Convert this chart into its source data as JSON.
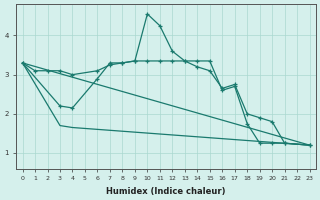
{
  "xlabel": "Humidex (Indice chaleur)",
  "ylabel": "",
  "bg_color": "#d5f0ec",
  "line_color": "#1a7a6e",
  "grid_color": "#aad8d0",
  "xlim": [
    -0.5,
    23.5
  ],
  "ylim": [
    0.6,
    4.8
  ],
  "xticks": [
    0,
    1,
    2,
    3,
    4,
    5,
    6,
    7,
    8,
    9,
    10,
    11,
    12,
    13,
    14,
    15,
    16,
    17,
    18,
    19,
    20,
    21,
    22,
    23
  ],
  "yticks": [
    1,
    2,
    3,
    4
  ],
  "line1_x": [
    0,
    1,
    2,
    3,
    4,
    6,
    7,
    8,
    9,
    10,
    11,
    12,
    13,
    14,
    15,
    16,
    17,
    18,
    19,
    20,
    21,
    23
  ],
  "line1_y": [
    3.3,
    3.1,
    3.1,
    3.1,
    3.0,
    3.1,
    3.25,
    3.3,
    3.35,
    4.55,
    4.25,
    3.6,
    3.35,
    3.2,
    3.1,
    2.65,
    2.75,
    2.0,
    1.9,
    1.8,
    1.25,
    1.2
  ],
  "line2_x": [
    0,
    3,
    4,
    6,
    7,
    8,
    9,
    10,
    11,
    12,
    13,
    14,
    15,
    16,
    17,
    18,
    19,
    20,
    21,
    23
  ],
  "line2_y": [
    3.3,
    2.2,
    2.15,
    2.9,
    3.3,
    3.3,
    3.35,
    3.35,
    3.35,
    3.35,
    3.35,
    3.35,
    3.35,
    2.6,
    2.7,
    1.75,
    1.25,
    1.25,
    1.25,
    1.2
  ],
  "line3_x": [
    0,
    23
  ],
  "line3_y": [
    3.3,
    1.2
  ],
  "line4_x": [
    0,
    3,
    4,
    23
  ],
  "line4_y": [
    3.3,
    1.7,
    1.65,
    1.2
  ]
}
